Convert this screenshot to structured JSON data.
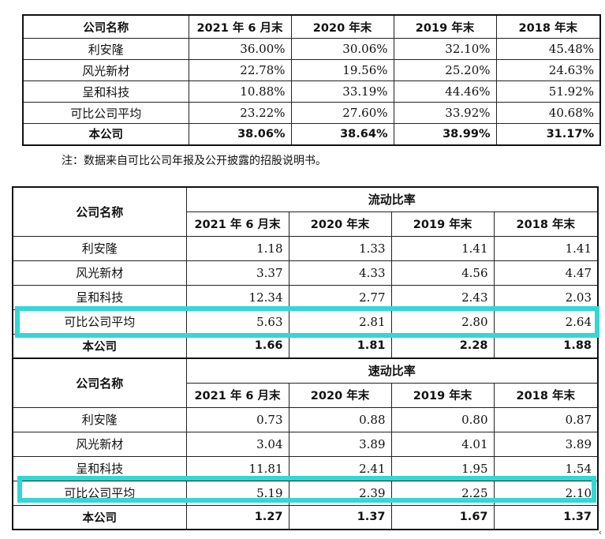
{
  "table1": {
    "headers": [
      "公司名称",
      "2021 年 6 月末",
      "2020 年末",
      "2019 年末",
      "2018 年末"
    ],
    "rows": [
      {
        "name": "利安隆",
        "values": [
          "36.00%",
          "30.06%",
          "32.10%",
          "45.48%"
        ]
      },
      {
        "name": "风光新材",
        "values": [
          "22.78%",
          "19.56%",
          "25.20%",
          "24.63%"
        ]
      },
      {
        "name": "呈和科技",
        "values": [
          "10.88%",
          "33.19%",
          "44.46%",
          "51.92%"
        ]
      },
      {
        "name": "可比公司平均",
        "values": [
          "23.22%",
          "27.60%",
          "33.92%",
          "40.68%"
        ]
      },
      {
        "name": "本公司",
        "values": [
          "38.06%",
          "38.64%",
          "38.99%",
          "31.17%"
        ]
      }
    ]
  },
  "note": "注：数据来自可比公司年报及公开披露的招股说明书。",
  "table2": {
    "company_header": "公司名称",
    "periods": [
      "2021 年 6 月末",
      "2020 年末",
      "2019 年末",
      "2018 年末"
    ],
    "current_ratio": {
      "title": "流动比率",
      "rows": [
        {
          "name": "利安隆",
          "values": [
            "1.18",
            "1.33",
            "1.41",
            "1.41"
          ]
        },
        {
          "name": "风光新材",
          "values": [
            "3.37",
            "4.33",
            "4.56",
            "4.47"
          ]
        },
        {
          "name": "呈和科技",
          "values": [
            "12.34",
            "2.77",
            "2.43",
            "2.03"
          ]
        },
        {
          "name": "可比公司平均",
          "values": [
            "5.63",
            "2.81",
            "2.80",
            "2.64"
          ]
        },
        {
          "name": "本公司",
          "values": [
            "1.66",
            "1.81",
            "2.28",
            "1.88"
          ]
        }
      ]
    },
    "quick_ratio": {
      "title": "速动比率",
      "rows": [
        {
          "name": "利安隆",
          "values": [
            "0.73",
            "0.88",
            "0.80",
            "0.87"
          ]
        },
        {
          "name": "风光新材",
          "values": [
            "3.04",
            "3.89",
            "4.01",
            "3.89"
          ]
        },
        {
          "name": "呈和科技",
          "values": [
            "11.81",
            "2.41",
            "1.95",
            "1.54"
          ]
        },
        {
          "name": "可比公司平均",
          "values": [
            "5.19",
            "2.39",
            "2.25",
            "2.10"
          ]
        },
        {
          "name": "本公司",
          "values": [
            "1.27",
            "1.37",
            "1.67",
            "1.37"
          ]
        }
      ]
    }
  },
  "highlight_color": "#35d6d6",
  "corner_mark": "‹"
}
